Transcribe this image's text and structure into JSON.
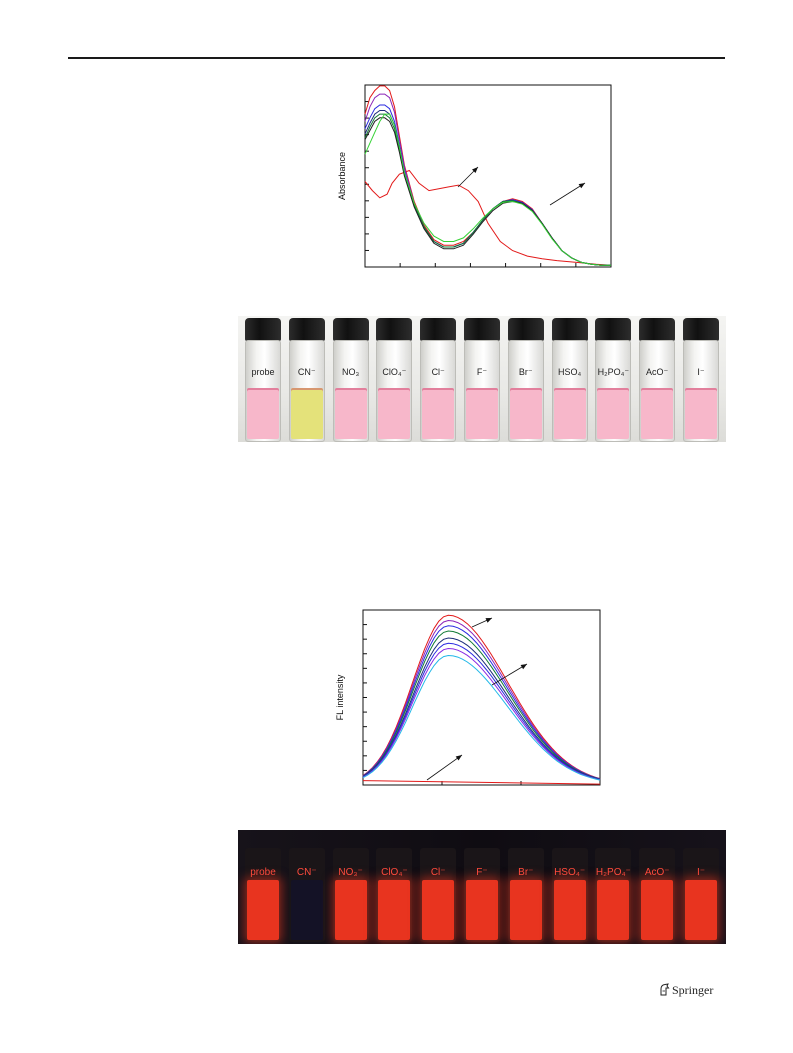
{
  "footer": {
    "publisher": "Springer"
  },
  "colors": {
    "uv_red": "#e21a1a",
    "uv_purple": "#8b23b8",
    "uv_blue": "#2a2ae0",
    "uv_navy": "#1c2c7a",
    "uv_darkgreen": "#127a36",
    "uv_green": "#35d235",
    "uv_black": "#222222",
    "vial_pink": "#f7b7ca",
    "vial_yellow": "#e4e27a",
    "glow_red": "#e8341f",
    "glow_dark": "#141226"
  },
  "chart_data": [
    {
      "type": "line",
      "ylabel": "Absorbance",
      "xlabel": "",
      "x_ticks_count": 8,
      "y_ticks_count": 12,
      "xlim": [
        0,
        100
      ],
      "ylim": [
        0,
        100
      ],
      "series": [
        {
          "color": "#e21a1a",
          "x": [
            0,
            3,
            6,
            9,
            11,
            14,
            18,
            22,
            26,
            30,
            34,
            38,
            42,
            46,
            50,
            55,
            60,
            66,
            72,
            78,
            86,
            94,
            100
          ],
          "values": [
            47,
            42,
            38,
            40,
            46,
            51,
            53,
            46,
            42,
            43,
            44,
            45,
            42,
            36,
            24,
            14,
            9,
            6,
            4.5,
            3.5,
            2.5,
            1.5,
            1
          ]
        },
        {
          "color": "#e21a1a",
          "x": [
            0,
            2,
            4,
            6,
            8,
            10,
            12,
            14,
            16,
            20,
            24,
            28,
            32,
            36,
            40,
            44,
            48,
            52,
            56,
            60,
            64,
            68,
            72,
            76,
            80,
            84,
            88,
            92,
            96,
            100
          ],
          "values": [
            84,
            93,
            97,
            99.5,
            99.5,
            97,
            88,
            72,
            56,
            36,
            23,
            15,
            12,
            12,
            14,
            19,
            26,
            32,
            36,
            37.5,
            36,
            32,
            24,
            16,
            9,
            5,
            2.5,
            1.5,
            1,
            1
          ]
        },
        {
          "color": "#8b23b8",
          "x": [
            0,
            2,
            4,
            6,
            8,
            10,
            12,
            14,
            16,
            20,
            24,
            28,
            32,
            36,
            40,
            44,
            48,
            52,
            56,
            60,
            64,
            68,
            72,
            76,
            80,
            84,
            88,
            92,
            96,
            100
          ],
          "values": [
            80,
            88,
            93,
            95,
            95,
            93,
            85,
            70,
            55,
            35,
            22,
            14,
            11,
            11,
            13,
            19,
            26,
            32,
            36,
            37,
            35.5,
            31.5,
            24,
            16,
            9,
            5,
            2.5,
            1.5,
            1,
            1
          ]
        },
        {
          "color": "#2a2ae0",
          "x": [
            0,
            2,
            4,
            6,
            8,
            10,
            12,
            14,
            16,
            20,
            24,
            28,
            32,
            36,
            40,
            44,
            48,
            52,
            56,
            60,
            64,
            68,
            72,
            76,
            80,
            84,
            88,
            92,
            96,
            100
          ],
          "values": [
            76,
            82,
            87,
            89,
            89,
            87,
            80,
            67,
            53,
            34,
            22,
            14,
            11,
            11,
            13,
            19,
            26,
            32,
            36,
            37,
            35.5,
            31.5,
            24,
            16,
            9,
            5,
            2.5,
            1.5,
            1,
            1
          ]
        },
        {
          "color": "#1c2c7a",
          "x": [
            0,
            2,
            4,
            6,
            8,
            10,
            12,
            14,
            16,
            20,
            24,
            28,
            32,
            36,
            40,
            44,
            48,
            52,
            56,
            60,
            64,
            68,
            72,
            76,
            80,
            84,
            88,
            92,
            96,
            100
          ],
          "values": [
            73,
            79,
            84,
            86,
            86,
            84,
            78,
            66,
            52,
            34,
            22,
            14,
            11,
            11,
            13,
            19,
            26,
            32,
            36,
            36.5,
            35,
            31,
            24,
            16,
            9,
            5,
            2.5,
            1.5,
            1,
            1
          ]
        },
        {
          "color": "#127a36",
          "x": [
            0,
            2,
            4,
            6,
            8,
            10,
            12,
            14,
            16,
            20,
            24,
            28,
            32,
            36,
            40,
            44,
            48,
            52,
            56,
            60,
            64,
            68,
            72,
            76,
            80,
            84,
            88,
            92,
            96,
            100
          ],
          "values": [
            71,
            77,
            82,
            84,
            84,
            82,
            76,
            64,
            51,
            34,
            22,
            14,
            11,
            11,
            13,
            19,
            26,
            32,
            36,
            36.5,
            35,
            31,
            24,
            16,
            9,
            5,
            2.5,
            1.5,
            1,
            1
          ]
        },
        {
          "color": "#222222",
          "x": [
            0,
            2,
            4,
            6,
            8,
            10,
            12,
            14,
            16,
            20,
            24,
            28,
            32,
            36,
            40,
            44,
            48,
            52,
            56,
            60,
            64,
            68,
            72,
            76,
            80,
            84,
            88,
            92,
            96,
            100
          ],
          "values": [
            70,
            75,
            80,
            82,
            82,
            80,
            74,
            63,
            50,
            33,
            21,
            13,
            10,
            10,
            12,
            18,
            25,
            31,
            35,
            36,
            35,
            31,
            24,
            16,
            9,
            5,
            2.5,
            1.5,
            1,
            1
          ]
        },
        {
          "color": "#35d235",
          "x": [
            0,
            2,
            4,
            6,
            8,
            10,
            12,
            14,
            16,
            20,
            24,
            28,
            32,
            36,
            40,
            44,
            48,
            52,
            56,
            60,
            64,
            68,
            72,
            76,
            80,
            84,
            88,
            92,
            96,
            100
          ],
          "values": [
            62,
            68,
            74,
            80,
            84,
            84,
            78,
            66,
            52,
            35,
            24,
            17,
            14,
            14,
            16,
            21,
            27,
            32,
            35.5,
            36,
            34.5,
            30.5,
            23.5,
            15.5,
            9,
            5,
            2.5,
            1.5,
            1,
            1
          ]
        }
      ]
    },
    {
      "type": "line",
      "ylabel": "FL intensity",
      "xlabel": "",
      "x_ticks_count": 4,
      "y_ticks_count": 13,
      "xlim": [
        0,
        100
      ],
      "ylim": [
        0,
        100
      ],
      "series": [
        {
          "color": "#e21a1a",
          "x": [
            0,
            100
          ],
          "values": [
            2.5,
            0.5
          ]
        },
        {
          "color": "#e21a1a",
          "peak": 97
        },
        {
          "color": "#8b23b8",
          "peak": 94
        },
        {
          "color": "#2a2ae0",
          "peak": 91
        },
        {
          "color": "#127a36",
          "peak": 88
        },
        {
          "color": "#1c2c7a",
          "peak": 84
        },
        {
          "color": "#2a2ae0",
          "peak": 81
        },
        {
          "color": "#8a2be2",
          "peak": 78
        },
        {
          "color": "#22b8e8",
          "peak": 74
        }
      ]
    }
  ],
  "photo_visible_light": {
    "vials": [
      {
        "label": "probe",
        "color": "#f7b7ca"
      },
      {
        "label": "CN⁻",
        "color": "#e4e27a"
      },
      {
        "label": "NO₃",
        "color": "#f7b7ca"
      },
      {
        "label": "ClO₄⁻",
        "color": "#f7b7ca"
      },
      {
        "label": "Cl⁻",
        "color": "#f7b7ca"
      },
      {
        "label": "F⁻",
        "color": "#f7b7ca"
      },
      {
        "label": "Br⁻",
        "color": "#f7b7ca"
      },
      {
        "label": "HSO₄",
        "color": "#f7b7ca"
      },
      {
        "label": "H₂PO₄⁻",
        "color": "#f7b7ca"
      },
      {
        "label": "AcO⁻",
        "color": "#f7b7ca"
      },
      {
        "label": "I⁻",
        "color": "#f7b7ca"
      }
    ]
  },
  "photo_uv_light": {
    "vials": [
      {
        "label": "probe",
        "color": "#e8341f"
      },
      {
        "label": "CN⁻",
        "color": "#141226"
      },
      {
        "label": "NO₃⁻",
        "color": "#e8341f"
      },
      {
        "label": "ClO₄⁻",
        "color": "#e8341f"
      },
      {
        "label": "Cl⁻",
        "color": "#e8341f"
      },
      {
        "label": "F⁻",
        "color": "#e8341f"
      },
      {
        "label": "Br⁻",
        "color": "#e8341f"
      },
      {
        "label": "HSO₄⁻",
        "color": "#e8341f"
      },
      {
        "label": "H₂PO₄⁻",
        "color": "#e8341f"
      },
      {
        "label": "AcO⁻",
        "color": "#e8341f"
      },
      {
        "label": "I⁻",
        "color": "#e8341f"
      }
    ]
  }
}
